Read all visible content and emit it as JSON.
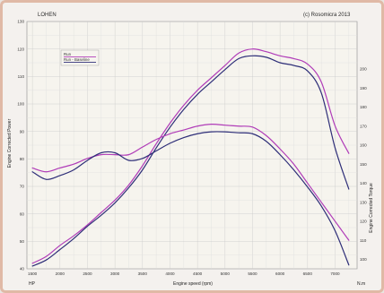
{
  "chart_data": {
    "type": "line",
    "header_left": "LOHEN",
    "header_right": "(c) Rosomicra  2013",
    "x": [
      1500,
      1750,
      2000,
      2250,
      2500,
      2750,
      3000,
      3250,
      3500,
      3750,
      4000,
      4250,
      4500,
      4750,
      5000,
      5250,
      5500,
      5750,
      6000,
      6250,
      6500,
      6750,
      7000,
      7250
    ],
    "xlabel": "Engine speed (rpm)",
    "xlim": [
      1400,
      7400
    ],
    "x_ticks": [
      "1500",
      "2000",
      "2500",
      "3000",
      "3500",
      "4000",
      "4500",
      "5000",
      "5500",
      "6000",
      "6500",
      "7000"
    ],
    "xlim_left_unit": "HP",
    "xlim_right_unit": "N.m",
    "ylabel": "Engine Corrected Power",
    "ylim": [
      40,
      130
    ],
    "y_ticks": [
      "40",
      "50",
      "60",
      "70",
      "80",
      "90",
      "100",
      "110",
      "120",
      "130"
    ],
    "y2label": "Engine Corrected Torque",
    "y2lim": [
      95,
      225
    ],
    "y2_ticks": [
      "100",
      "110",
      "120",
      "130",
      "140",
      "150",
      "160",
      "170",
      "180",
      "190",
      "200"
    ],
    "series": [
      {
        "name": "Run",
        "axis": "power",
        "color": "#b03cb8",
        "values": [
          42,
          44.5,
          48.5,
          52,
          56,
          60.5,
          65,
          70.5,
          77.5,
          85.5,
          93,
          99.5,
          105,
          109.5,
          114,
          118.5,
          120,
          119,
          117.5,
          116.5,
          114.5,
          108,
          92,
          82
        ]
      },
      {
        "name": "Run - Baseline",
        "axis": "power",
        "color": "#2e2e78",
        "values": [
          41,
          43.2,
          47,
          51,
          55.5,
          59.5,
          64,
          69.5,
          76,
          84,
          91.5,
          98,
          103.5,
          108,
          112.5,
          116.5,
          117.5,
          117,
          115,
          114,
          112,
          104,
          84,
          69
        ]
      },
      {
        "axis": "torque",
        "color": "#b03cb8",
        "values": [
          148,
          146,
          148,
          150,
          153,
          155,
          155,
          155,
          159,
          163,
          166,
          168,
          170,
          171,
          170.5,
          170,
          169.5,
          165,
          158,
          150,
          140,
          130,
          120,
          110
        ]
      },
      {
        "axis": "torque",
        "color": "#2e2e78",
        "values": [
          146,
          142,
          144,
          147,
          152,
          156,
          156,
          152,
          153,
          157,
          161,
          164,
          166,
          167,
          167,
          166.5,
          166,
          162,
          155,
          147,
          138,
          128,
          115,
          97
        ]
      }
    ],
    "legend": [
      "Run",
      "Run - Baseline"
    ],
    "legend_position": "top-left",
    "grid": true
  }
}
